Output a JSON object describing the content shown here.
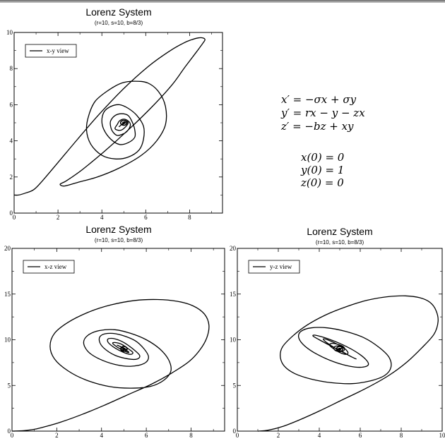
{
  "window": {
    "bar_color": "#8a8a8a"
  },
  "equations": {
    "system": [
      "x′ = −σx + σy",
      "y′ = rx − y − zx",
      "z′ = −bz + xy"
    ],
    "initial": [
      "x(0) = 0",
      "y(0) = 1",
      "z(0) = 0"
    ]
  },
  "chart_data": [
    {
      "type": "line",
      "title": "Lorenz System",
      "subtitle": "(r=10, s=10, b=8/3)",
      "xlim": [
        0,
        9.5
      ],
      "ylim": [
        0,
        10
      ],
      "xticks": [
        "0",
        "2",
        "4",
        "6",
        "8"
      ],
      "yticks": [
        "0",
        "2",
        "4",
        "6",
        "8",
        "10"
      ],
      "legend": {
        "label": "x-y view",
        "position": "top-left"
      },
      "series": [
        {
          "x": [
            0,
            0.2,
            0.5,
            0.9,
            1.3,
            2.0,
            2.9,
            3.9,
            5.0,
            6.1,
            7.0,
            7.7,
            8.1,
            8.4,
            8.6,
            8.7,
            8.6,
            8.3,
            7.8,
            7.2,
            6.3,
            5.2,
            4.1,
            3.1,
            2.4,
            2.1,
            2.3,
            2.9,
            3.8,
            4.8,
            5.8,
            6.5,
            6.9,
            6.9,
            6.6,
            6.1,
            5.5,
            4.9,
            4.3,
            3.7,
            3.4,
            3.3,
            3.5,
            4.0,
            4.6,
            5.2,
            5.7,
            5.9,
            5.9,
            5.6,
            5.2,
            4.8,
            4.4,
            4.1,
            4.0,
            4.1,
            4.4,
            4.8,
            5.2,
            5.5,
            5.5,
            5.4,
            5.2,
            4.9,
            4.6,
            4.4,
            4.4,
            4.5,
            4.7,
            5.0,
            5.2,
            5.3,
            5.2,
            5.0,
            4.8,
            4.7,
            4.6,
            4.7,
            4.9,
            5.1,
            5.2,
            5.1,
            5.0,
            4.9,
            4.8,
            4.8,
            4.9,
            5.0,
            5.1,
            5.0,
            4.95,
            4.9,
            4.95,
            5.0
          ],
          "y": [
            1.0,
            1.0,
            1.1,
            1.3,
            1.8,
            2.8,
            4.1,
            5.5,
            6.9,
            8.1,
            8.9,
            9.4,
            9.6,
            9.7,
            9.7,
            9.6,
            9.4,
            8.9,
            8.1,
            7.1,
            5.9,
            4.6,
            3.4,
            2.4,
            1.8,
            1.6,
            1.5,
            1.7,
            2.0,
            2.5,
            3.2,
            4.0,
            4.9,
            5.9,
            6.7,
            7.2,
            7.3,
            7.2,
            6.8,
            6.2,
            5.4,
            4.6,
            3.8,
            3.2,
            3.0,
            3.1,
            3.5,
            4.1,
            4.8,
            5.4,
            5.8,
            6.0,
            5.9,
            5.6,
            5.1,
            4.6,
            4.1,
            3.8,
            3.9,
            4.2,
            4.6,
            5.0,
            5.4,
            5.5,
            5.4,
            5.1,
            4.8,
            4.5,
            4.3,
            4.4,
            4.6,
            4.9,
            5.1,
            5.2,
            5.1,
            4.9,
            4.7,
            4.6,
            4.6,
            4.8,
            5.0,
            5.1,
            5.0,
            4.9,
            4.8,
            4.8,
            4.9,
            5.0,
            5.0,
            4.95,
            4.9,
            4.9,
            4.95,
            5.0
          ]
        }
      ]
    },
    {
      "type": "line",
      "title": "Lorenz System",
      "subtitle": "(r=10, s=10, b=8/3)",
      "xlim": [
        0,
        9.5
      ],
      "ylim": [
        0,
        20
      ],
      "xticks": [
        "0",
        "2",
        "4",
        "6",
        "8"
      ],
      "yticks": [
        "0",
        "5",
        "10",
        "15",
        "20"
      ],
      "legend": {
        "label": "x-z view",
        "position": "top-left"
      },
      "series": [
        {
          "x": [
            0,
            0.5,
            1.0,
            1.5,
            2.2,
            3.1,
            4.1,
            5.1,
            6.2,
            7.1,
            7.9,
            8.4,
            8.7,
            8.8,
            8.6,
            8.1,
            7.4,
            6.5,
            5.5,
            4.4,
            3.4,
            2.5,
            1.9,
            1.7,
            1.9,
            2.5,
            3.3,
            4.3,
            5.3,
            6.2,
            6.8,
            7.1,
            7.0,
            6.6,
            6.0,
            5.3,
            4.6,
            3.9,
            3.4,
            3.2,
            3.4,
            3.9,
            4.6,
            5.3,
            5.9,
            6.1,
            5.9,
            5.5,
            4.9,
            4.4,
            4.0,
            3.9,
            4.1,
            4.6,
            5.2,
            5.6,
            5.7,
            5.4,
            5.0,
            4.6,
            4.3,
            4.3,
            4.6,
            5.0,
            5.3,
            5.4,
            5.2,
            4.9,
            4.6,
            4.5,
            4.7,
            5.0,
            5.2,
            5.2,
            5.0,
            4.8,
            4.7,
            4.8,
            5.0,
            5.1,
            5.05,
            4.9,
            4.85,
            4.95,
            5.0
          ],
          "y": [
            0,
            0.05,
            0.2,
            0.5,
            1.0,
            1.8,
            2.8,
            3.9,
            5.1,
            6.3,
            7.6,
            8.9,
            10.2,
            11.6,
            12.8,
            13.7,
            14.2,
            14.4,
            14.3,
            13.8,
            13.0,
            11.9,
            10.7,
            9.3,
            7.9,
            6.6,
            5.6,
            4.9,
            4.7,
            4.9,
            5.6,
            6.6,
            7.8,
            9.0,
            10.0,
            10.7,
            11.1,
            11.0,
            10.5,
            9.7,
            8.7,
            7.9,
            7.3,
            7.1,
            7.4,
            8.1,
            9.0,
            9.9,
            10.5,
            10.7,
            10.5,
            9.9,
            9.1,
            8.3,
            7.9,
            7.9,
            8.3,
            9.0,
            9.7,
            10.1,
            10.1,
            9.7,
            9.1,
            8.6,
            8.4,
            8.6,
            9.0,
            9.5,
            9.7,
            9.6,
            9.2,
            8.8,
            8.6,
            8.7,
            9.0,
            9.3,
            9.4,
            9.3,
            9.1,
            8.9,
            8.8,
            8.9,
            9.0,
            9.1,
            9.0
          ]
        }
      ]
    },
    {
      "type": "line",
      "title": "Lorenz System",
      "subtitle": "(r=10, s=10, b=8/3)",
      "xlim": [
        0,
        10
      ],
      "ylim": [
        0,
        20
      ],
      "xticks": [
        "0",
        "2",
        "4",
        "6",
        "8",
        "10"
      ],
      "yticks": [
        "0",
        "5",
        "10",
        "15",
        "20"
      ],
      "legend": {
        "label": "y-z view",
        "position": "top-left"
      },
      "series": [
        {
          "x": [
            1.0,
            1.5,
            2.2,
            3.0,
            4.0,
            5.1,
            6.3,
            7.4,
            8.3,
            9.0,
            9.6,
            9.8,
            9.7,
            9.4,
            8.9,
            8.2,
            7.3,
            6.3,
            5.3,
            4.3,
            3.4,
            2.7,
            2.2,
            2.1,
            2.3,
            2.8,
            3.6,
            4.6,
            5.6,
            6.5,
            7.2,
            7.5,
            7.4,
            6.9,
            6.2,
            5.3,
            4.4,
            3.6,
            3.1,
            3.0,
            3.3,
            3.9,
            4.7,
            5.5,
            6.1,
            6.4,
            6.2,
            5.7,
            5.0,
            4.3,
            3.8,
            3.7,
            4.0,
            4.5,
            5.1,
            5.6,
            5.8,
            5.6,
            5.2,
            4.7,
            4.3,
            4.2,
            4.4,
            4.8,
            5.2,
            5.4,
            5.3,
            5.0,
            4.7,
            4.5,
            4.6,
            4.9,
            5.2,
            5.2,
            5.0,
            4.8,
            4.7,
            4.8,
            5.0,
            5.1,
            5.0,
            4.9,
            4.9,
            5.0
          ],
          "y": [
            0,
            0.1,
            0.5,
            1.2,
            2.2,
            3.4,
            4.7,
            6.1,
            7.6,
            9.1,
            10.6,
            12.0,
            13.2,
            14.1,
            14.6,
            14.8,
            14.7,
            14.3,
            13.6,
            12.7,
            11.6,
            10.4,
            9.2,
            8.1,
            7.1,
            6.3,
            5.7,
            5.3,
            5.2,
            5.5,
            6.1,
            7.0,
            8.1,
            9.2,
            10.2,
            10.9,
            11.3,
            11.3,
            10.9,
            10.2,
            9.3,
            8.4,
            7.6,
            7.1,
            7.0,
            7.3,
            8.0,
            8.8,
            9.6,
            10.2,
            10.5,
            10.4,
            10.0,
            9.4,
            8.7,
            8.1,
            7.9,
            8.1,
            8.6,
            9.2,
            9.8,
            10.1,
            10.0,
            9.6,
            9.1,
            8.6,
            8.4,
            8.6,
            9.0,
            9.4,
            9.6,
            9.5,
            9.2,
            8.8,
            8.7,
            8.8,
            9.1,
            9.3,
            9.3,
            9.1,
            8.9,
            8.9,
            9.0,
            9.0
          ]
        }
      ]
    }
  ]
}
